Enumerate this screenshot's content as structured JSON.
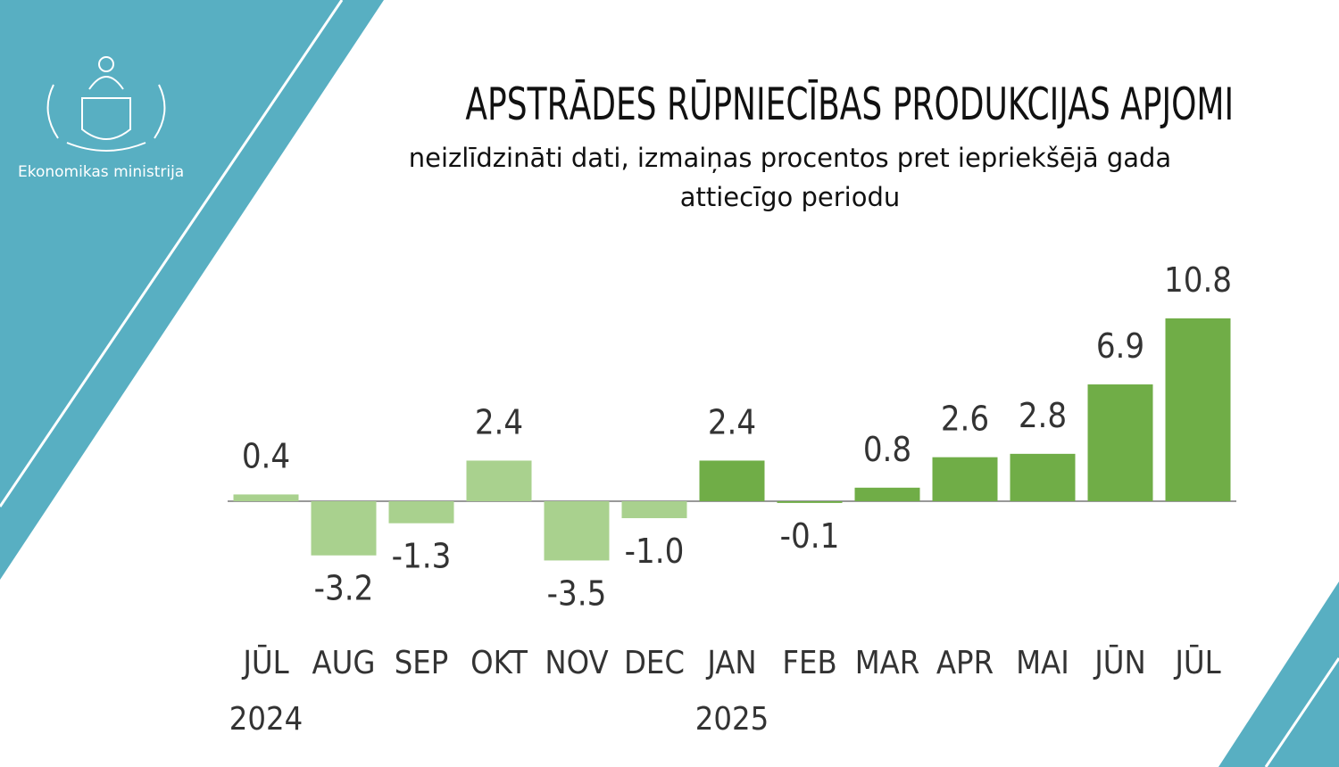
{
  "branding": {
    "organization": "Ekonomikas ministrija"
  },
  "chart_data": {
    "type": "bar",
    "title": "APSTRĀDES RŪPNIECĪBAS PRODUKCIJAS APJOMI",
    "subtitle": "neizlīdzināti dati, izmaiņas procentos pret iepriekšējā gada attiecīgo periodu",
    "categories": [
      "JŪL",
      "AUG",
      "SEP",
      "OKT",
      "NOV",
      "DEC",
      "JAN",
      "FEB",
      "MAR",
      "APR",
      "MAI",
      "JŪN",
      "JŪL"
    ],
    "year_labels": [
      "2024",
      null,
      null,
      null,
      null,
      null,
      "2025",
      null,
      null,
      null,
      null,
      null,
      null
    ],
    "values": [
      0.4,
      -3.2,
      -1.3,
      2.4,
      -3.5,
      -1.0,
      2.4,
      -0.1,
      0.8,
      2.6,
      2.8,
      6.9,
      10.8
    ],
    "value_labels": [
      "0.4",
      "-3.2",
      "-1.3",
      "2.4",
      "-3.5",
      "-1.0",
      "2.4",
      "-0.1",
      "0.8",
      "2.6",
      "2.8",
      "6.9",
      "10.8"
    ],
    "colors": [
      "#a9d18e",
      "#a9d18e",
      "#a9d18e",
      "#a9d18e",
      "#a9d18e",
      "#a9d18e",
      "#70ad47",
      "#70ad47",
      "#70ad47",
      "#70ad47",
      "#70ad47",
      "#70ad47",
      "#70ad47"
    ]
  }
}
